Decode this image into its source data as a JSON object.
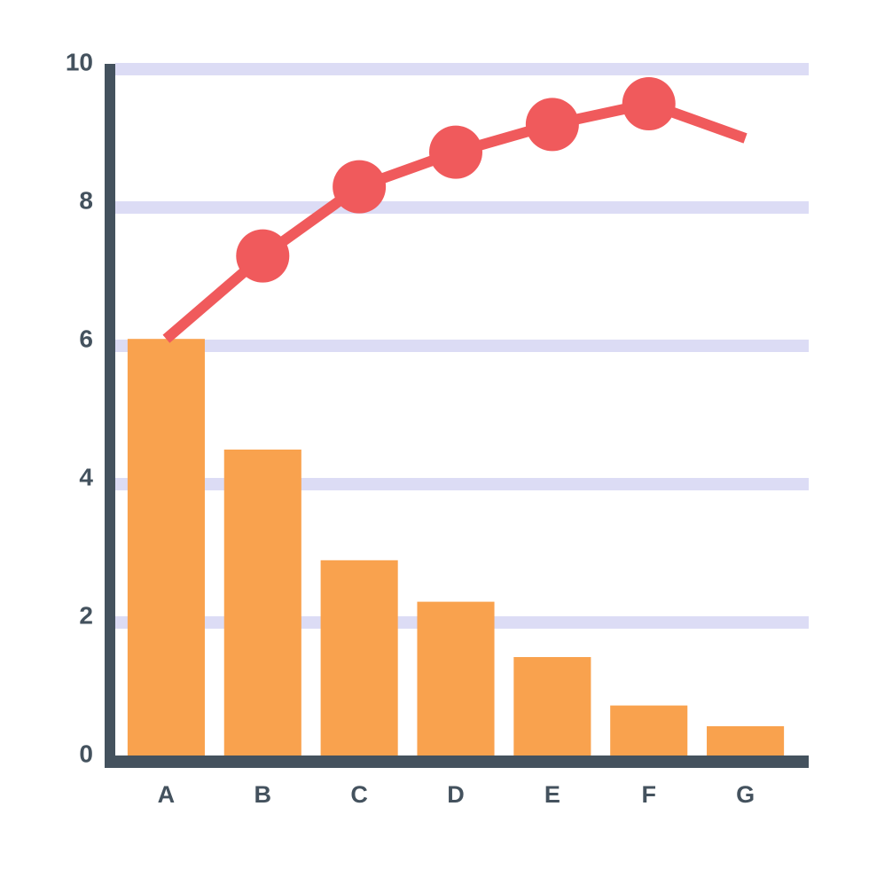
{
  "chart_data": {
    "type": "pareto",
    "categories": [
      "A",
      "B",
      "C",
      "D",
      "E",
      "F",
      "G"
    ],
    "series": [
      {
        "type": "bar",
        "color": "#f9a24e",
        "values": [
          6.1,
          4.5,
          2.9,
          2.3,
          1.5,
          0.8,
          0.5
        ]
      },
      {
        "type": "line",
        "color": "#f05a5c",
        "values": [
          6.1,
          7.3,
          8.3,
          8.8,
          9.2,
          9.5,
          9.0
        ]
      }
    ],
    "ylim": [
      0,
      10
    ],
    "yticks": [
      0,
      2,
      4,
      6,
      8,
      10
    ],
    "grid": true,
    "grid_color": "#dcdcf5",
    "axis_color": "#44525e"
  }
}
